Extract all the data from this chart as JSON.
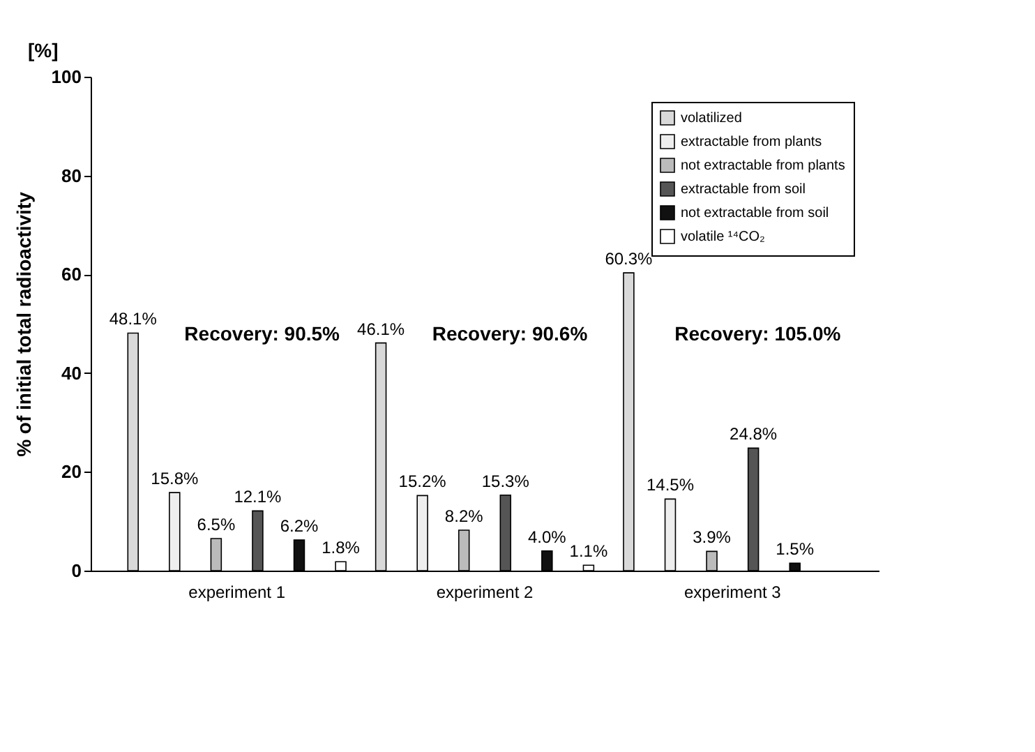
{
  "chart_data": {
    "type": "bar",
    "ylabel": "% of initial total radioactivity",
    "categories": [
      "experiment 1",
      "experiment 2",
      "experiment 3"
    ],
    "series": [
      {
        "name": "volatilized",
        "color": "#d9d9d9",
        "values": [
          48.1,
          46.1,
          60.3
        ],
        "value_labels": [
          "48.1%",
          "46.1%",
          "60.3%"
        ]
      },
      {
        "name": "extractable from plants",
        "color": "#eeeeee",
        "values": [
          15.8,
          15.2,
          14.5
        ],
        "value_labels": [
          "15.8%",
          "15.2%",
          "14.5%"
        ]
      },
      {
        "name": "not extractable from plants",
        "color": "#bbbbbb",
        "values": [
          6.5,
          8.2,
          3.9
        ],
        "value_labels": [
          "6.5%",
          "8.2%",
          "3.9%"
        ]
      },
      {
        "name": "extractable from soil",
        "color": "#555555",
        "values": [
          12.1,
          15.3,
          24.8
        ],
        "value_labels": [
          "12.1%",
          "15.3%",
          "24.8%"
        ]
      },
      {
        "name": "not extractable from soil",
        "color": "#111111",
        "values": [
          6.2,
          4.0,
          1.5
        ],
        "value_labels": [
          "6.2%",
          "4.0%",
          "1.5%"
        ]
      },
      {
        "name": "volatile ¹⁴CO₂",
        "color": "#ffffff",
        "values": [
          1.8,
          1.1,
          null
        ],
        "value_labels": [
          "1.8%",
          "1.1%",
          null
        ]
      }
    ],
    "ylim": [
      0,
      100
    ],
    "yticks": [
      0,
      20,
      40,
      60,
      80,
      100
    ],
    "grid": false,
    "legend": "top right",
    "annotations": [
      "[%]",
      "Recovery: 90.5%",
      "Recovery: 90.6%",
      "Recovery: 105.0%"
    ]
  }
}
